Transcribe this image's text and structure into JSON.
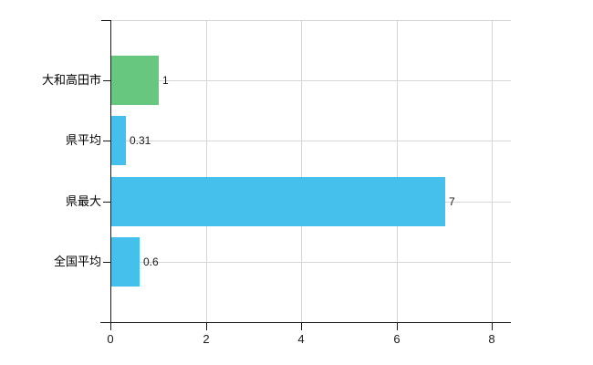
{
  "chart_data": {
    "type": "bar",
    "orientation": "horizontal",
    "title": "",
    "categories": [
      "大和高田市",
      "県平均",
      "県最大",
      "全国平均"
    ],
    "values": [
      1,
      0.31,
      7,
      0.6
    ],
    "value_labels": [
      "1",
      "0.31",
      "7",
      "0.6"
    ],
    "bar_colors": [
      "#67c77f",
      "#45bfec",
      "#45bfec",
      "#45bfec"
    ],
    "xlim": [
      0,
      8
    ],
    "x_tick_values": [
      0,
      2,
      4,
      6,
      8
    ],
    "x_tick_labels": [
      "0",
      "2",
      "4",
      "6",
      "8"
    ],
    "grid": true,
    "legend": false
  },
  "colors": {
    "background": "#ffffff",
    "grid": "#d6d6d6",
    "axis": "#1a1a1a",
    "text": "#1a1a1a",
    "bar_green": "#67c77f",
    "bar_blue": "#45bfec"
  }
}
